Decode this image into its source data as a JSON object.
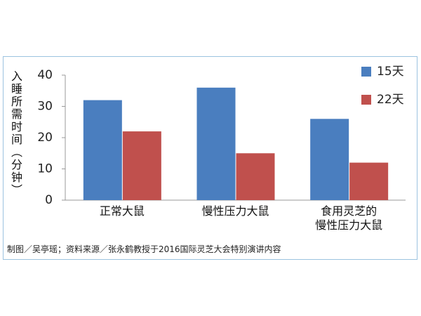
{
  "chart_data": {
    "type": "bar",
    "y_label": "入睡所需时间（分钟）",
    "categories": [
      "正常大鼠",
      "慢性压力大鼠",
      "食用灵芝的\n慢性压力大鼠"
    ],
    "series": [
      {
        "name": "15天",
        "color": "#4a7ebf",
        "values": [
          32,
          36,
          26
        ]
      },
      {
        "name": "22天",
        "color": "#c0504d",
        "values": [
          22,
          15,
          12
        ]
      }
    ],
    "ylim": [
      0,
      40
    ],
    "yticks": [
      0,
      10,
      20,
      30,
      40
    ],
    "grid": false,
    "legend": "top-right",
    "source": "制图／吴亭瑶；资料来源／张永鹤教授于2016国际灵芝大会特别演讲内容"
  }
}
